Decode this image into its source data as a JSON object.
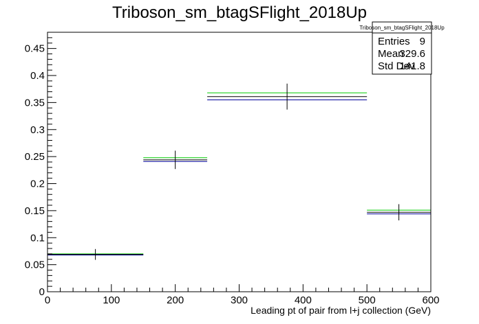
{
  "chart_data": {
    "type": "histogram",
    "title": "Triboson_sm_btagSFlight_2018Up",
    "xlabel": "Leading pt of pair from l+j collection (GeV)",
    "ylabel": "",
    "xlim": [
      0,
      600
    ],
    "ylim": [
      0,
      0.48
    ],
    "x_ticks": [
      0,
      100,
      200,
      300,
      400,
      500,
      600
    ],
    "y_ticks": [
      0,
      0.05,
      0.1,
      0.15,
      0.2,
      0.25,
      0.3,
      0.35,
      0.4,
      0.45
    ],
    "x_tick_labels": [
      "0",
      "100",
      "200",
      "300",
      "400",
      "500",
      "600"
    ],
    "y_tick_labels": [
      "0",
      "0.05",
      "0.1",
      "0.15",
      "0.2",
      "0.25",
      "0.3",
      "0.35",
      "0.4",
      "0.45"
    ],
    "bins": [
      {
        "xlow": 0,
        "xhigh": 150,
        "center": 75,
        "nominal": 0.069,
        "up": 0.07,
        "down": 0.068,
        "err": 0.01
      },
      {
        "xlow": 150,
        "xhigh": 250,
        "center": 200,
        "nominal": 0.244,
        "up": 0.248,
        "down": 0.241,
        "err": 0.017
      },
      {
        "xlow": 250,
        "xhigh": 500,
        "center": 375,
        "nominal": 0.361,
        "up": 0.368,
        "down": 0.355,
        "err": 0.024
      },
      {
        "xlow": 500,
        "xhigh": 600,
        "center": 550,
        "nominal": 0.147,
        "up": 0.151,
        "down": 0.144,
        "err": 0.015
      }
    ],
    "colors": {
      "nominal": "#000000",
      "up": "#00cc00",
      "down": "#000099"
    },
    "grid": false,
    "legend": "none"
  },
  "stats": {
    "name": "Triboson_sm_btagSFlight_2018Up",
    "rows": [
      {
        "label": "Entries",
        "value": "9"
      },
      {
        "label": "Mean",
        "value": "329.6"
      },
      {
        "label": "Std Dev",
        "value": "141.8"
      }
    ]
  }
}
